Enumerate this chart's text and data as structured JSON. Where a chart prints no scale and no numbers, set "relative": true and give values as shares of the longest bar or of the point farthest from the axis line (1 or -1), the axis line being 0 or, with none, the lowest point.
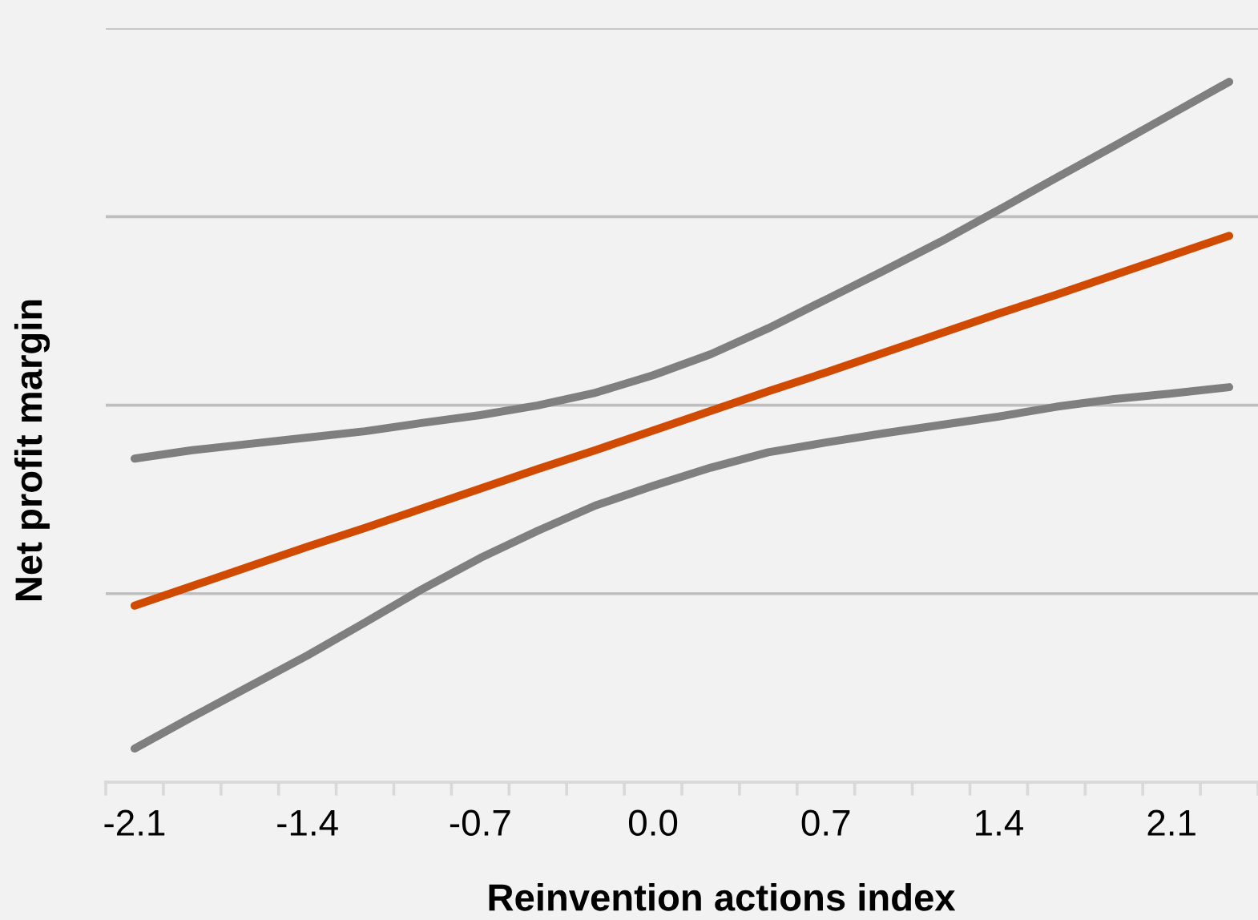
{
  "chart_data": {
    "type": "line",
    "xlabel": "Reinvention actions index",
    "ylabel": "Net profit margin",
    "relative": true,
    "categories": [
      "-2.1",
      null,
      null,
      "-1.4",
      null,
      null,
      "-0.7",
      null,
      null,
      "0.0",
      null,
      null,
      "0.7",
      null,
      null,
      "1.4",
      null,
      null,
      "2.1",
      null
    ],
    "series": [
      {
        "color": "#7f7f7f",
        "values": [
          0.462,
          0.474,
          0.483,
          0.492,
          0.501,
          0.513,
          0.524,
          0.538,
          0.556,
          0.581,
          0.611,
          0.648,
          0.689,
          0.73,
          0.772,
          0.817,
          0.863,
          0.908,
          0.954,
          1.0
        ]
      },
      {
        "color": "#7f7f7f",
        "values": [
          0.048,
          0.093,
          0.137,
          0.181,
          0.228,
          0.276,
          0.32,
          0.359,
          0.395,
          0.423,
          0.449,
          0.471,
          0.485,
          0.498,
          0.51,
          0.522,
          0.536,
          0.547,
          0.555,
          0.564
        ]
      },
      {
        "color": "#d04a02",
        "values": [
          0.252,
          0.28,
          0.308,
          0.336,
          0.363,
          0.391,
          0.419,
          0.447,
          0.474,
          0.502,
          0.53,
          0.558,
          0.585,
          0.613,
          0.641,
          0.669,
          0.696,
          0.724,
          0.752,
          0.78
        ]
      }
    ],
    "grid": "y",
    "marker": "none",
    "line_style": "solid"
  }
}
